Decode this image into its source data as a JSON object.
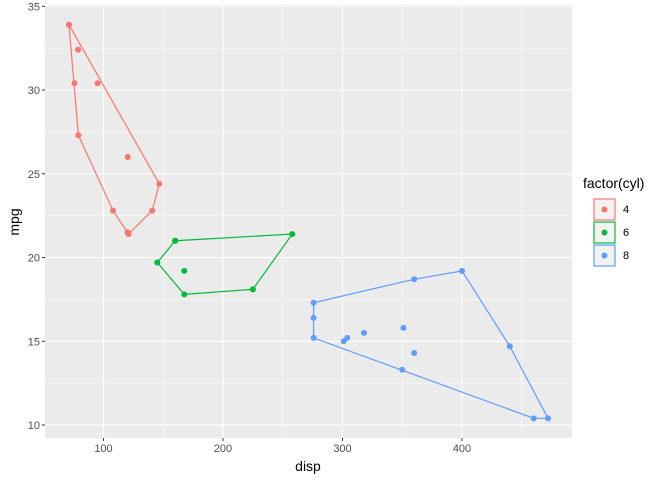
{
  "chart_data": {
    "type": "scatter",
    "title": "",
    "xlabel": "disp",
    "ylabel": "mpg",
    "xlim": [
      51.05,
      492.05
    ],
    "ylim": [
      9.225,
      35.075
    ],
    "x_ticks": [
      100,
      200,
      300,
      400
    ],
    "y_ticks": [
      10,
      15,
      20,
      25,
      30,
      35
    ],
    "grid": true,
    "legend": {
      "title": "factor(cyl)",
      "position": "right"
    },
    "overlay": "convex hull polygon per group",
    "series": [
      {
        "name": "4",
        "color": "#F8766D",
        "points": [
          [
            108,
            22.8
          ],
          [
            146.7,
            24.4
          ],
          [
            140.8,
            22.8
          ],
          [
            78.7,
            32.4
          ],
          [
            75.7,
            30.4
          ],
          [
            71.1,
            33.9
          ],
          [
            120.1,
            21.5
          ],
          [
            79,
            27.3
          ],
          [
            120.3,
            26.0
          ],
          [
            95.1,
            30.4
          ],
          [
            121,
            21.4
          ]
        ]
      },
      {
        "name": "6",
        "color": "#00BA38",
        "points": [
          [
            160,
            21.0
          ],
          [
            160,
            21.0
          ],
          [
            258,
            21.4
          ],
          [
            225,
            18.1
          ],
          [
            167.6,
            19.2
          ],
          [
            167.6,
            17.8
          ],
          [
            145,
            19.7
          ]
        ]
      },
      {
        "name": "8",
        "color": "#619CFF",
        "points": [
          [
            360,
            18.7
          ],
          [
            360,
            14.3
          ],
          [
            275.8,
            16.4
          ],
          [
            275.8,
            17.3
          ],
          [
            275.8,
            15.2
          ],
          [
            472,
            10.4
          ],
          [
            460,
            10.4
          ],
          [
            440,
            14.7
          ],
          [
            318,
            15.5
          ],
          [
            304,
            15.2
          ],
          [
            350,
            13.3
          ],
          [
            400,
            19.2
          ],
          [
            351,
            15.8
          ],
          [
            301,
            15.0
          ]
        ]
      }
    ]
  }
}
